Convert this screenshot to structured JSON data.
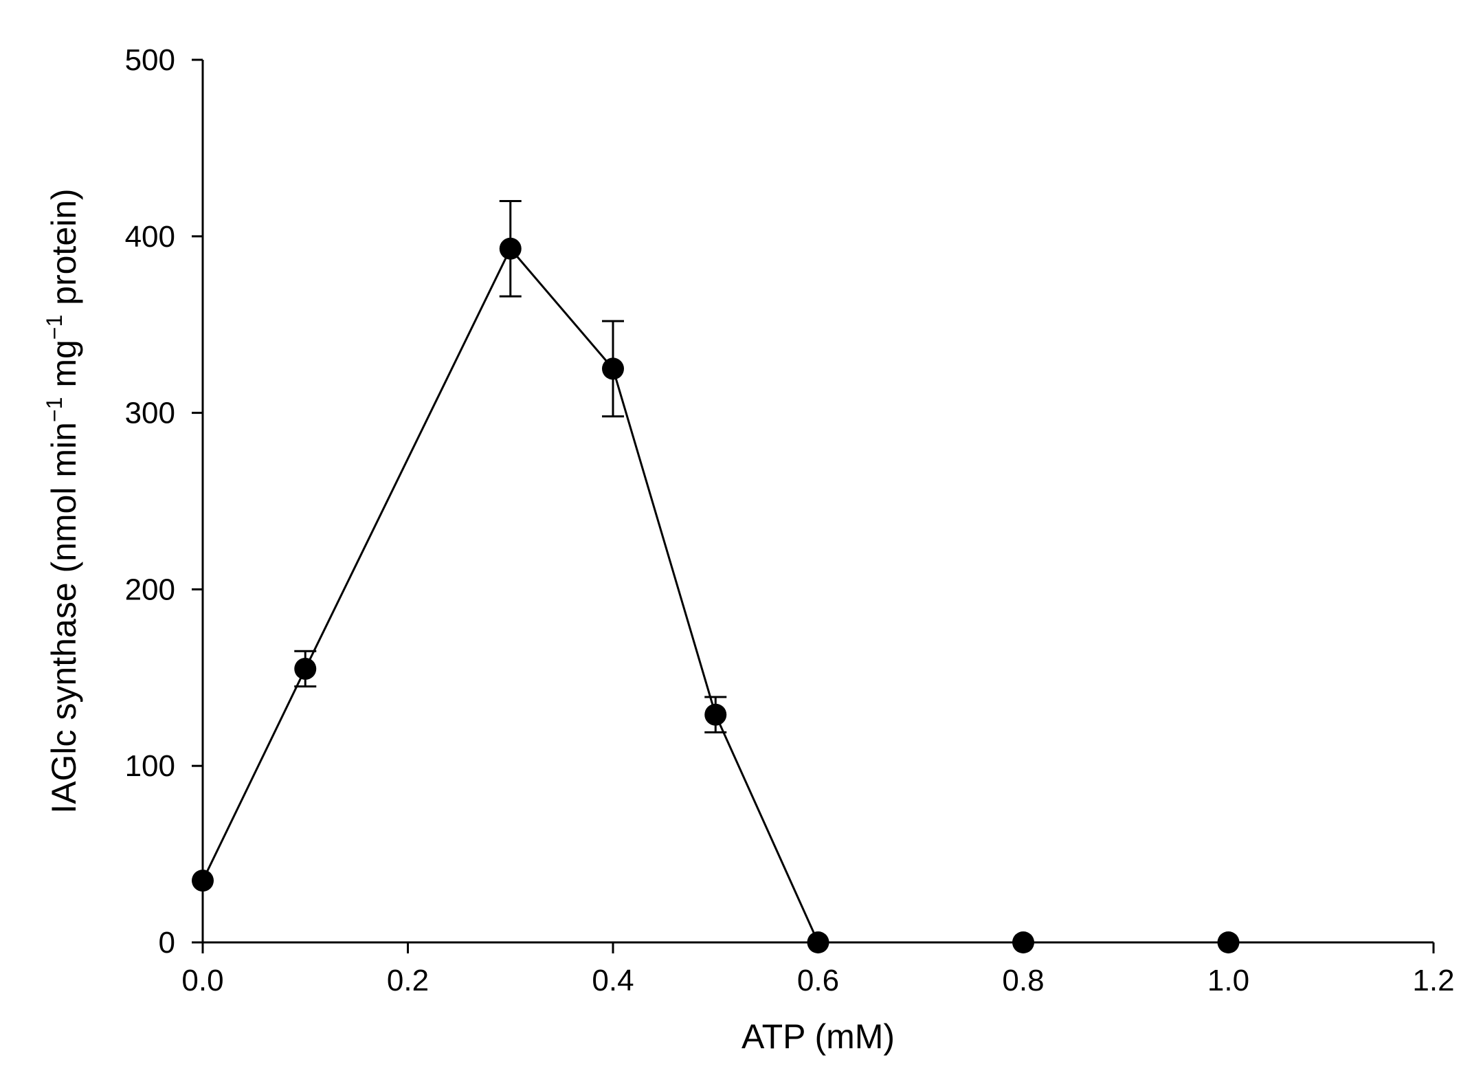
{
  "chart_data": {
    "type": "scatter",
    "mode": "line+markers",
    "xlabel": "ATP (mM)",
    "ylabel": {
      "parts": [
        "IAGlc synthase (nmol min",
        "−1",
        " mg",
        "−1",
        " protein)"
      ],
      "superscript_indices": [
        1,
        3
      ]
    },
    "xlim": [
      0.0,
      1.2
    ],
    "ylim": [
      0,
      500
    ],
    "xticks": [
      "0.0",
      "0.2",
      "0.4",
      "0.6",
      "0.8",
      "1.0",
      "1.2"
    ],
    "xtick_values": [
      0.0,
      0.2,
      0.4,
      0.6,
      0.8,
      1.0,
      1.2
    ],
    "yticks": [
      "0",
      "100",
      "200",
      "300",
      "400",
      "500"
    ],
    "ytick_values": [
      0,
      100,
      200,
      300,
      400,
      500
    ],
    "grid": false,
    "legend": "none",
    "series": [
      {
        "x": [
          0.0,
          0.1,
          0.3,
          0.4,
          0.5,
          0.6,
          0.8,
          1.0
        ],
        "y": [
          35,
          155,
          393,
          325,
          129,
          0,
          0,
          0
        ],
        "error": [
          0,
          10,
          27,
          27,
          10,
          0,
          0,
          0
        ]
      }
    ],
    "color": "#000000"
  }
}
